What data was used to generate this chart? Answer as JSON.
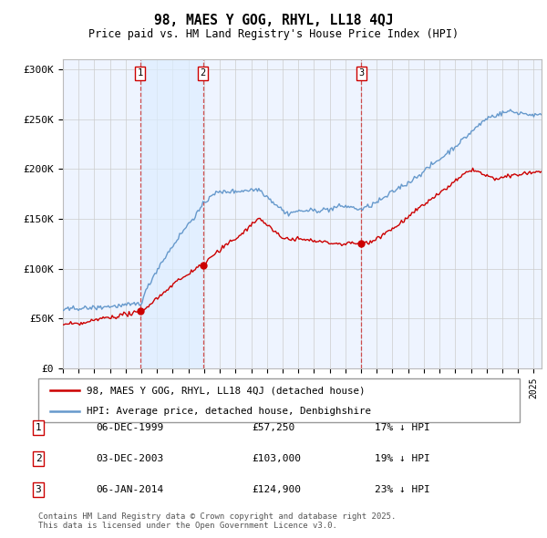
{
  "title": "98, MAES Y GOG, RHYL, LL18 4QJ",
  "subtitle": "Price paid vs. HM Land Registry's House Price Index (HPI)",
  "ylabel_ticks": [
    "£0",
    "£50K",
    "£100K",
    "£150K",
    "£200K",
    "£250K",
    "£300K"
  ],
  "ytick_vals": [
    0,
    50000,
    100000,
    150000,
    200000,
    250000,
    300000
  ],
  "ylim": [
    0,
    310000
  ],
  "sale_dates_num": [
    1999.92,
    2003.92,
    2014.01
  ],
  "sale_prices": [
    57250,
    103000,
    124900
  ],
  "sale_labels": [
    "1",
    "2",
    "3"
  ],
  "sale_label_pct": [
    "17% ↓ HPI",
    "19% ↓ HPI",
    "23% ↓ HPI"
  ],
  "sale_label_dates": [
    "06-DEC-1999",
    "03-DEC-2003",
    "06-JAN-2014"
  ],
  "legend_line1": "98, MAES Y GOG, RHYL, LL18 4QJ (detached house)",
  "legend_line2": "HPI: Average price, detached house, Denbighshire",
  "footer": "Contains HM Land Registry data © Crown copyright and database right 2025.\nThis data is licensed under the Open Government Licence v3.0.",
  "line_color_red": "#cc0000",
  "line_color_blue": "#6699cc",
  "vline_color": "#cc3333",
  "bg_band_color": "#ddeeff",
  "grid_color": "#cccccc",
  "chart_bg": "#eef4ff"
}
